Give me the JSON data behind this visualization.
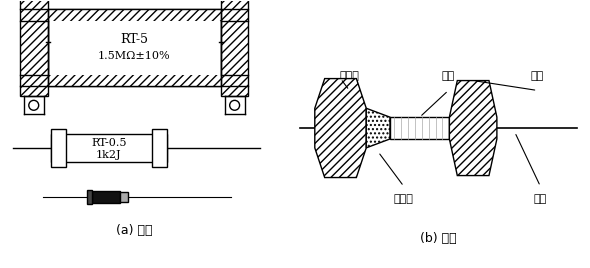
{
  "fig_width": 5.9,
  "fig_height": 2.68,
  "dpi": 100,
  "bg_color": "#ffffff",
  "label_a": "(a) 外形",
  "label_b": "(b) 结构",
  "rt5_label1": "RT-5",
  "rt5_label2": "1.5MΩ±10%",
  "rt05_label1": "RT-0.5",
  "rt05_label2": "1k2J",
  "annot_baohuqi": "保护漆",
  "annot_citang": "瓷棒",
  "annot_mangai": "帽盖",
  "annot_tanmoceng": "碳膜层",
  "annot_yinxian": "引线"
}
